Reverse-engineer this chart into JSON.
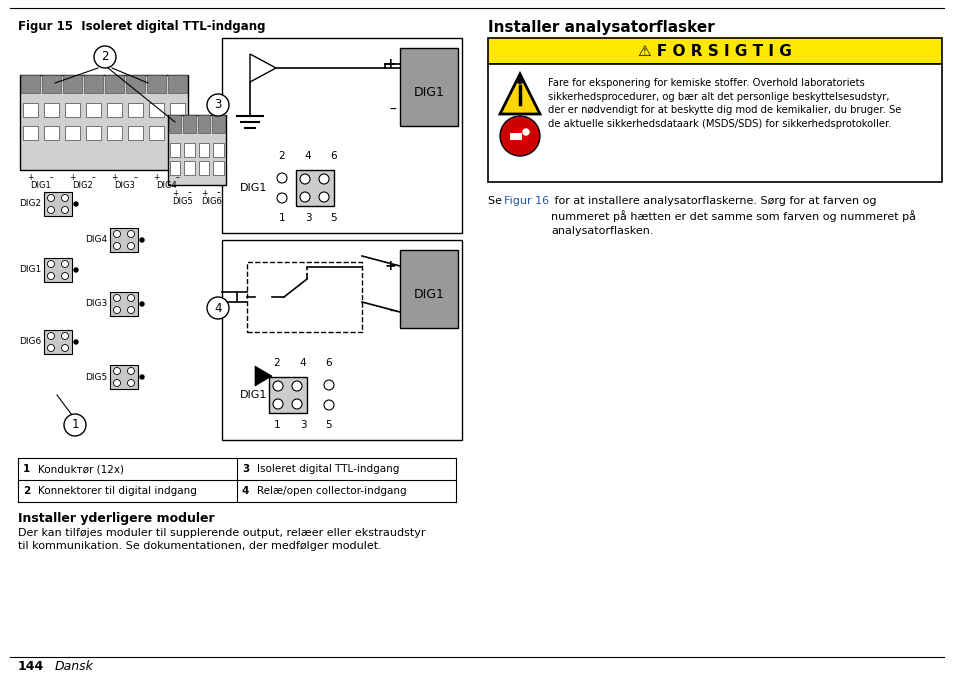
{
  "fig_title": "Figur 15  Isoleret digital TTL-indgang",
  "right_title": "Installer analysatorflasker",
  "caution_title": "⚠ F O R S I G T I G",
  "caution_text": "Fare for eksponering for kemiske stoffer. Overhold laboratoriets\nsikkerhedsprocedurer, og bær alt det personlige beskyttelsesudstyr,\nder er nødvendigt for at beskytte dig mod de kemikalier, du bruger. Se\nde aktuelle sikkerhedsdataark (MSDS/SDS) for sikkerhedsprotokoller.",
  "right_para_pre": "Se ",
  "right_para_link": "Figur 16",
  "right_para_post": " for at installere analysatorflaskerne. Sørg for at farven og\nnummeret på hætten er det samme som farven og nummeret på\nanalysatorflasken.",
  "table_rows": [
    [
      "1",
      "Kondukтør (12x)",
      "3",
      "Isoleret digital TTL-indgang"
    ],
    [
      "2",
      "Konnektorer til digital indgang",
      "4",
      "Relæ/open collector-indgang"
    ]
  ],
  "section_title": "Installer yderligere moduler",
  "section_text": "Der kan tilføjes moduler til supplerende output, relæer eller ekstraudstyr\ntil kommunikation. Se dokumentationen, der medfølger modulet.",
  "page_num": "144",
  "page_lang": "Dansk",
  "bg_color": "#ffffff",
  "yellow_color": "#FFE800",
  "gray_box": "#999999",
  "light_gray": "#cccccc",
  "connector_gray": "#bbbbbb",
  "plug_gray": "#dddddd"
}
